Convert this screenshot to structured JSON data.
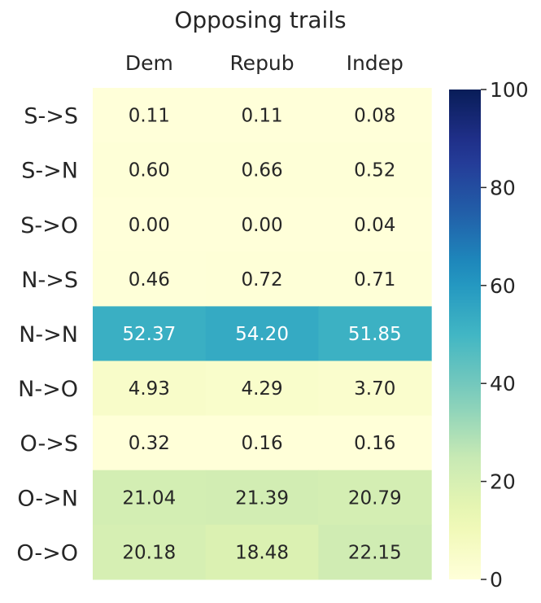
{
  "chart_data": {
    "type": "heatmap",
    "title": "Opposing trails",
    "columns": [
      "Dem",
      "Repub",
      "Indep"
    ],
    "rows": [
      "S->S",
      "S->N",
      "S->O",
      "N->S",
      "N->N",
      "N->O",
      "O->S",
      "O->N",
      "O->O"
    ],
    "values": [
      [
        0.11,
        0.11,
        0.08
      ],
      [
        0.6,
        0.66,
        0.52
      ],
      [
        0.0,
        0.0,
        0.04
      ],
      [
        0.46,
        0.72,
        0.71
      ],
      [
        52.37,
        54.2,
        51.85
      ],
      [
        4.93,
        4.29,
        3.7
      ],
      [
        0.32,
        0.16,
        0.16
      ],
      [
        21.04,
        21.39,
        20.79
      ],
      [
        20.18,
        18.48,
        22.15
      ]
    ],
    "value_labels": [
      [
        "0.11",
        "0.11",
        "0.08"
      ],
      [
        "0.60",
        "0.66",
        "0.52"
      ],
      [
        "0.00",
        "0.00",
        "0.04"
      ],
      [
        "0.46",
        "0.72",
        "0.71"
      ],
      [
        "52.37",
        "54.20",
        "51.85"
      ],
      [
        "4.93",
        "4.29",
        "3.70"
      ],
      [
        "0.32",
        "0.16",
        "0.16"
      ],
      [
        "21.04",
        "21.39",
        "20.79"
      ],
      [
        "20.18",
        "18.48",
        "22.15"
      ]
    ],
    "colorbar": {
      "range": [
        0,
        100
      ],
      "ticks": [
        0,
        20,
        40,
        60,
        80,
        100
      ],
      "colormap": "YlGnBu"
    }
  }
}
